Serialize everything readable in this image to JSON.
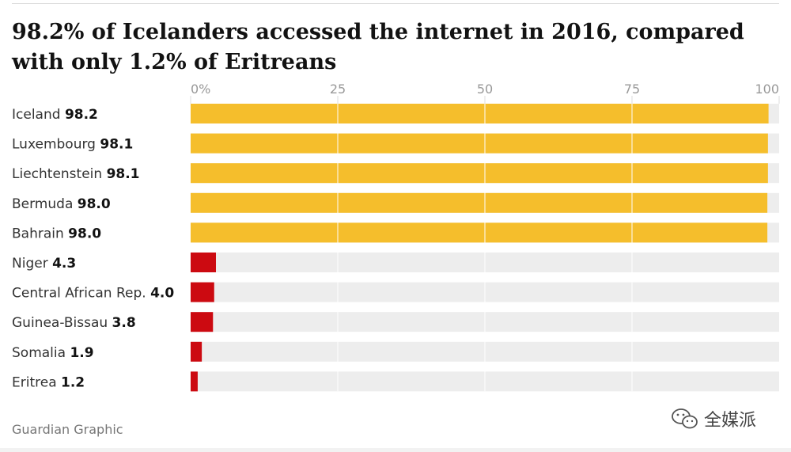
{
  "chart_data": {
    "type": "bar",
    "orientation": "horizontal",
    "title": "98.2% of Icelanders accessed the internet in 2016, compared with only 1.2% of Eritreans",
    "categories": [
      "Iceland",
      "Luxembourg",
      "Liechtenstein",
      "Bermuda",
      "Bahrain",
      "Niger",
      "Central African Rep.",
      "Guinea-Bissau",
      "Somalia",
      "Eritrea"
    ],
    "values": [
      98.2,
      98.1,
      98.1,
      98.0,
      98.0,
      4.3,
      4.0,
      3.8,
      1.9,
      1.2
    ],
    "value_labels": [
      "98.2",
      "98.1",
      "98.1",
      "98.0",
      "98.0",
      "4.3",
      "4.0",
      "3.8",
      "1.9",
      "1.2"
    ],
    "xlim": [
      0,
      100
    ],
    "ticks": [
      0,
      25,
      50,
      75,
      100
    ],
    "tick_labels": [
      "0%",
      "25",
      "50",
      "75",
      "100"
    ],
    "grid": true,
    "colors": {
      "high": "#f5be2c",
      "low": "#cc0a11",
      "track": "#ededed",
      "grid": "#ffffff"
    },
    "xlabel": "",
    "ylabel": ""
  },
  "source": "Guardian Graphic",
  "watermark": {
    "text": "全媒派",
    "icon": "wechat-icon"
  }
}
